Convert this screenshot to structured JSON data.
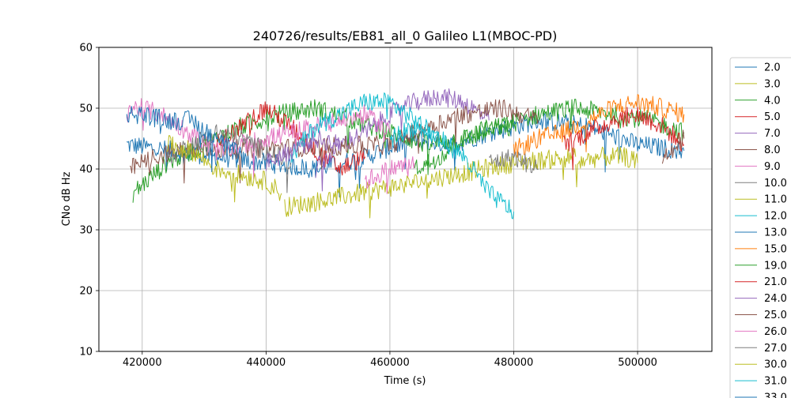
{
  "chart_data": {
    "type": "line",
    "title": "240726/results/EB81_all_0 Galileo L1(MBOC-PD)",
    "xlabel": "Time (s)",
    "ylabel": "CNo dB Hz",
    "xlim": [
      413000,
      512000
    ],
    "ylim": [
      10,
      60
    ],
    "xticks": [
      420000,
      440000,
      460000,
      480000,
      500000
    ],
    "xtick_labels": [
      "420000",
      "440000",
      "460000",
      "480000",
      "500000"
    ],
    "yticks": [
      10,
      20,
      30,
      40,
      50,
      60
    ],
    "ytick_labels": [
      "10",
      "20",
      "30",
      "40",
      "50",
      "60"
    ],
    "grid": true,
    "legend_position": "right, outside plot (clipped at bottom)",
    "series": [
      {
        "name": "2.0",
        "color": "#1f77b4",
        "x": [
          417500,
          425000,
          432000,
          440000,
          448000,
          456000,
          464000,
          470000,
          476000,
          484000,
          492000,
          500000,
          507500
        ],
        "y": [
          44,
          43,
          42,
          41,
          40,
          42,
          45,
          44,
          46,
          48,
          47,
          44,
          43
        ]
      },
      {
        "name": "3.0",
        "color": "#bcbd22",
        "x": [
          443000,
          450000,
          460000,
          470000,
          480000,
          490000
        ],
        "y": [
          33.7,
          35,
          37,
          39,
          41,
          42
        ]
      },
      {
        "name": "4.0",
        "color": "#2ca02c",
        "x": [
          418500,
          424000,
          430000,
          436000,
          442000,
          448000,
          454000,
          460000,
          466000,
          472000,
          478000,
          484000,
          490000,
          496000,
          502000,
          507500
        ],
        "y": [
          36,
          41,
          44,
          47,
          49,
          50,
          48,
          46,
          44,
          45,
          47,
          49,
          50,
          49,
          48,
          46
        ]
      },
      {
        "name": "5.0",
        "color": "#d62728",
        "x": [
          432000,
          436000,
          440000,
          444000,
          448000,
          452000,
          456000
        ],
        "y": [
          44,
          47,
          50,
          47,
          43,
          40,
          42
        ]
      },
      {
        "name": "7.0",
        "color": "#9467bd",
        "x": [
          448000,
          452000,
          456000,
          460000,
          464000,
          468000,
          472000,
          476000
        ],
        "y": [
          40,
          44,
          46,
          49,
          51,
          52,
          51,
          48
        ]
      },
      {
        "name": "8.0",
        "color": "#8c564b",
        "x": [
          418000,
          422000,
          426000,
          460000,
          466000,
          472000,
          478000,
          484000
        ],
        "y": [
          40,
          42,
          43,
          44,
          47,
          49,
          50,
          48
        ]
      },
      {
        "name": "9.0",
        "color": "#e377c2",
        "x": [
          417500,
          420000,
          423000,
          426000,
          429000,
          432000,
          452000,
          456000,
          460000
        ],
        "y": [
          50,
          50,
          49,
          47,
          45,
          43,
          48,
          49,
          46
        ]
      },
      {
        "name": "10.0",
        "color": "#7f7f7f",
        "x": [
          424000,
          428000,
          432000,
          436000,
          440000,
          444000
        ],
        "y": [
          42,
          44,
          46,
          45,
          43,
          41
        ]
      },
      {
        "name": "11.0",
        "color": "#bcbd22",
        "x": [
          424000,
          428000,
          432000,
          436000,
          440000,
          442500
        ],
        "y": [
          44,
          43,
          40,
          39,
          38,
          36
        ]
      },
      {
        "name": "12.0",
        "color": "#17becf",
        "x": [
          444000,
          448000,
          452000,
          456000,
          460000,
          464000,
          468000
        ],
        "y": [
          42,
          47,
          49,
          51,
          51,
          48,
          45
        ]
      },
      {
        "name": "13.0",
        "color": "#1f77b4",
        "x": [
          417500,
          420000,
          424000,
          428000,
          432000,
          436000
        ],
        "y": [
          49,
          49,
          48,
          48,
          45,
          42
        ]
      },
      {
        "name": "15.0",
        "color": "#ff7f0e",
        "x": [
          480000,
          484000,
          488000,
          492000,
          496000,
          500000,
          504000,
          507500
        ],
        "y": [
          43,
          45,
          46,
          48,
          50,
          51,
          50,
          49
        ]
      },
      {
        "name": "19.0",
        "color": "#2ca02c",
        "x": [
          464000,
          468000,
          472000,
          476000,
          480000
        ],
        "y": [
          40,
          42,
          45,
          47,
          47
        ]
      },
      {
        "name": "21.0",
        "color": "#d62728",
        "x": [
          488000,
          492000,
          496000,
          500000,
          504000,
          507500
        ],
        "y": [
          44,
          46,
          48,
          49,
          47,
          44
        ]
      },
      {
        "name": "24.0",
        "color": "#9467bd",
        "x": [
          440000,
          444000,
          448000,
          452000
        ],
        "y": [
          41,
          43,
          45,
          44
        ]
      },
      {
        "name": "25.0",
        "color": "#8c564b",
        "x": [
          504000,
          507500
        ],
        "y": [
          42,
          45
        ]
      },
      {
        "name": "26.0",
        "color": "#e377c2",
        "x": [
          456000,
          460000,
          464000
        ],
        "y": [
          38,
          40,
          41
        ]
      },
      {
        "name": "27.0",
        "color": "#7f7f7f",
        "x": [
          476000,
          480000,
          484000
        ],
        "y": [
          41,
          42,
          40
        ]
      },
      {
        "name": "30.0",
        "color": "#bcbd22",
        "x": [
          490000,
          494000,
          498000,
          500000
        ],
        "y": [
          41,
          42,
          42,
          41
        ]
      },
      {
        "name": "31.0",
        "color": "#17becf",
        "x": [
          460000,
          464000,
          468000,
          472000,
          476000,
          480000
        ],
        "y": [
          45,
          47,
          45,
          42,
          36,
          33
        ]
      },
      {
        "name": "33.0",
        "color": "#1f77b4",
        "x": [],
        "y": []
      }
    ]
  }
}
